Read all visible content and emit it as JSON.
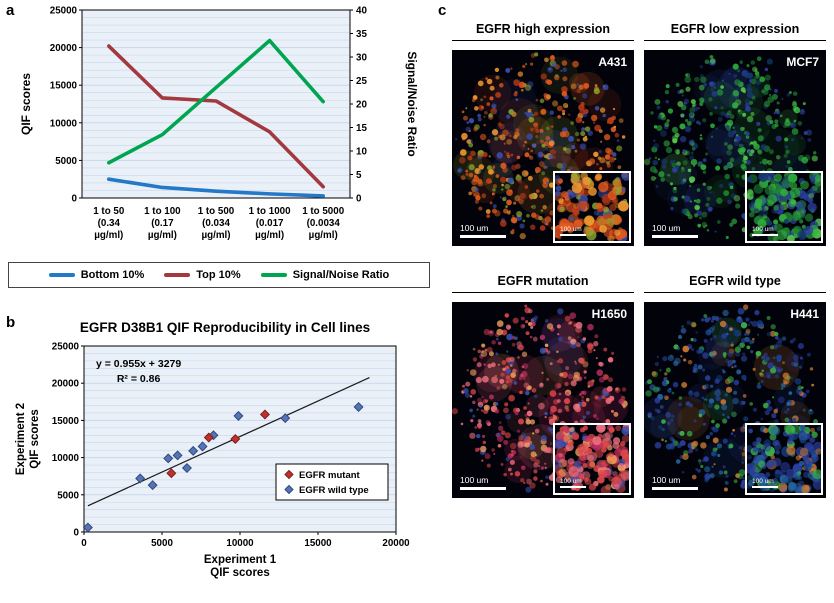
{
  "panels": {
    "a_label": "a",
    "b_label": "b",
    "c_label": "c"
  },
  "colors": {
    "bottom10": "#2478c8",
    "top10": "#a2393f",
    "snr": "#00a550",
    "mutant": "#c0312b",
    "mutant_edge": "#7d1f1c",
    "wildtype": "#5574b4",
    "wildtype_edge": "#31497f",
    "plot_bg": "#eaf0f8",
    "grid": "#c8d7ec",
    "trendline": "#1a1a1a"
  },
  "chart_data": [
    {
      "type": "line",
      "panel": "a",
      "ylabel_left": "QIF scores",
      "ylabel_right": "Signal/Noise Ratio",
      "ylim_left": [
        0,
        25000
      ],
      "ylim_right": [
        0,
        40
      ],
      "yticks_left": [
        0,
        5000,
        10000,
        15000,
        20000,
        25000
      ],
      "yticks_right": [
        0,
        5,
        10,
        15,
        20,
        25,
        30,
        35,
        40
      ],
      "categories": [
        [
          "1 to 50",
          "(0.34",
          "µg/ml)"
        ],
        [
          "1 to 100",
          "(0.17",
          "µg/ml)"
        ],
        [
          "1 to 500",
          "(0.034",
          "µg/ml)"
        ],
        [
          "1 to 1000",
          "(0.017",
          "µg/ml)"
        ],
        [
          "1 to 5000",
          "(0.0034",
          "µg/ml)"
        ]
      ],
      "series": [
        {
          "name": "Bottom 10%",
          "axis": "left",
          "color_key": "bottom10",
          "values": [
            2500,
            1400,
            900,
            550,
            280
          ]
        },
        {
          "name": "Top 10%",
          "axis": "left",
          "color_key": "top10",
          "values": [
            20200,
            13300,
            12900,
            8800,
            1500
          ]
        },
        {
          "name": "Signal/Noise Ratio",
          "axis": "right",
          "color_key": "snr",
          "values": [
            7.5,
            13.5,
            23.5,
            33.5,
            20.5
          ]
        }
      ]
    },
    {
      "type": "scatter",
      "panel": "b",
      "title": "EGFR D38B1 QIF Reproducibility in Cell lines",
      "annotation_lines": [
        "y = 0.955x + 3279",
        "R² = 0.86"
      ],
      "xlabel_lines": [
        "Experiment 1",
        "QIF scores"
      ],
      "ylabel_lines": [
        "Experiment 2",
        "QIF scores"
      ],
      "xlim": [
        0,
        20000
      ],
      "ylim": [
        0,
        25000
      ],
      "xticks": [
        0,
        5000,
        10000,
        15000,
        20000
      ],
      "yticks": [
        0,
        5000,
        10000,
        15000,
        20000,
        25000
      ],
      "trendline": {
        "slope": 0.955,
        "intercept": 3279,
        "x_start": 250,
        "x_end": 18300
      },
      "series": [
        {
          "name": "EGFR mutant",
          "color_key": "mutant",
          "edge_key": "mutant_edge",
          "points": [
            [
              5600,
              7900
            ],
            [
              8000,
              12700
            ],
            [
              9700,
              12500
            ],
            [
              11600,
              15800
            ]
          ]
        },
        {
          "name": "EGFR wild type",
          "color_key": "wildtype",
          "edge_key": "wildtype_edge",
          "points": [
            [
              250,
              600
            ],
            [
              3600,
              7200
            ],
            [
              4400,
              6300
            ],
            [
              5400,
              9900
            ],
            [
              6000,
              10300
            ],
            [
              6600,
              8600
            ],
            [
              7000,
              10900
            ],
            [
              7600,
              11500
            ],
            [
              8300,
              13000
            ],
            [
              9900,
              15600
            ],
            [
              12900,
              15300
            ],
            [
              17600,
              16800
            ]
          ]
        }
      ]
    }
  ],
  "panel_c": {
    "cells": [
      {
        "header": "EGFR high expression",
        "label": "A431",
        "scale_bar": "100 um",
        "inset_scale_bar": "100 um",
        "palette": [
          "#e05a20",
          "#f09a30",
          "#c03a18",
          "#3a4fae",
          "#86a12e"
        ]
      },
      {
        "header": "EGFR low expression",
        "label": "MCF7",
        "scale_bar": "100 um",
        "inset_scale_bar": "100 um",
        "palette": [
          "#2fae3e",
          "#1f7f33",
          "#2b3f9e",
          "#173a6e",
          "#59c84f"
        ]
      },
      {
        "header": "EGFR mutation",
        "label": "H1650",
        "scale_bar": "100 um",
        "inset_scale_bar": "100 um",
        "palette": [
          "#e04848",
          "#f07080",
          "#c03060",
          "#3a4fae",
          "#f0a060"
        ]
      },
      {
        "header": "EGFR wild type",
        "label": "H441",
        "scale_bar": "100 um",
        "inset_scale_bar": "100 um",
        "palette": [
          "#2b3f9e",
          "#3bb54a",
          "#27639e",
          "#16418e",
          "#c87830"
        ]
      }
    ]
  }
}
